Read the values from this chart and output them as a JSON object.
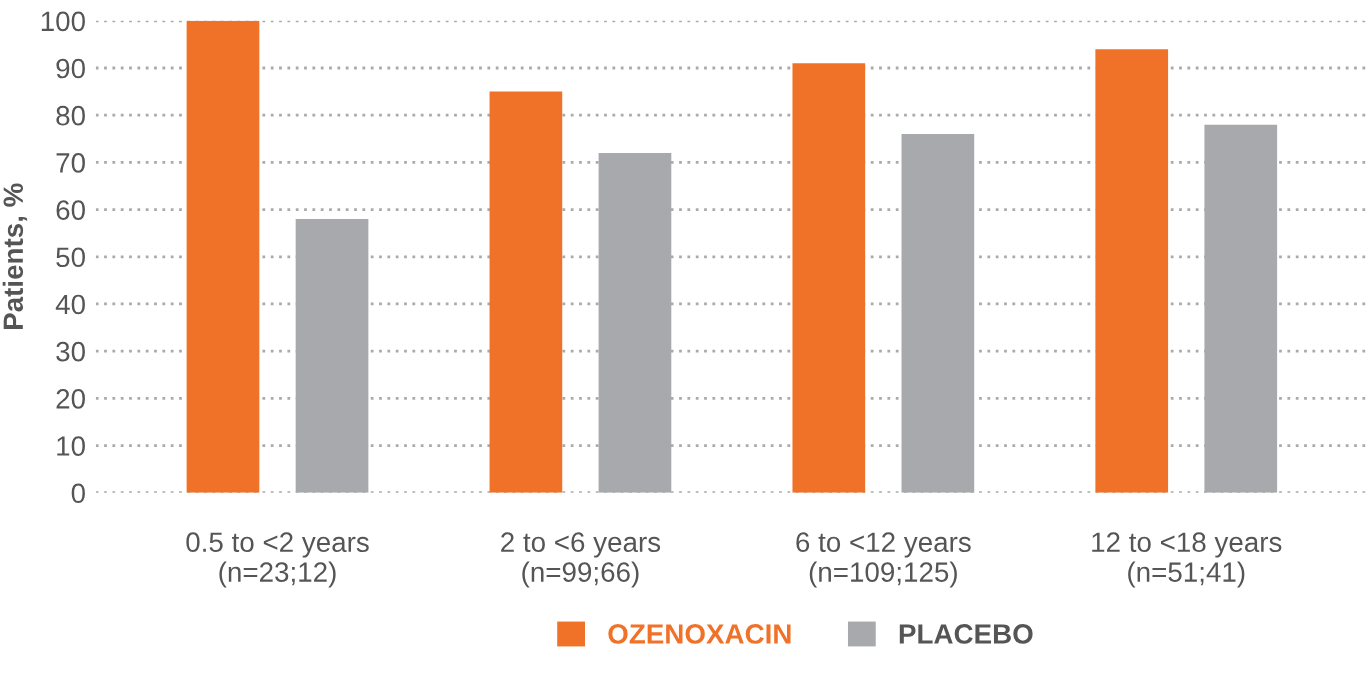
{
  "chart_data": {
    "type": "bar",
    "ylabel": "Patients, %",
    "categories": [
      "0.5 to <2 years\n(n=23;12)",
      "2 to <6 years\n(n=99;66)",
      "6 to <12 years\n(n=109;125)",
      "12 to <18 years\n(n=51;41)"
    ],
    "series": [
      {
        "name": "OZENOXACIN",
        "color": "#f07228",
        "values": [
          100,
          85,
          91,
          94
        ]
      },
      {
        "name": "PLACEBO",
        "color": "#a8a9ac",
        "values": [
          58,
          72,
          76,
          78
        ]
      }
    ],
    "ylim": [
      0,
      100
    ],
    "yticks": [
      0,
      10,
      20,
      30,
      40,
      50,
      60,
      70,
      80,
      90,
      100
    ],
    "grid": "y",
    "legend": "bottom"
  }
}
